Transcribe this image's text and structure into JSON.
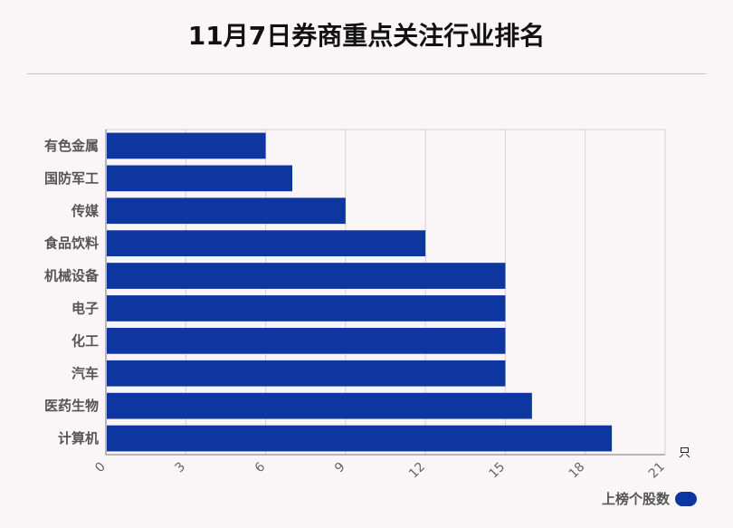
{
  "title": "11月7日券商重点关注行业排名",
  "chart_data": {
    "type": "bar",
    "orientation": "horizontal",
    "categories": [
      "有色金属",
      "国防军工",
      "传媒",
      "食品饮料",
      "机械设备",
      "电子",
      "化工",
      "汽车",
      "医药生物",
      "计算机"
    ],
    "series": [
      {
        "name": "上榜个股数",
        "values": [
          6,
          7,
          9,
          12,
          15,
          15,
          15,
          15,
          16,
          19
        ]
      }
    ],
    "xlim": [
      0,
      21
    ],
    "xticks": [
      0,
      3,
      6,
      9,
      12,
      15,
      18,
      21
    ],
    "xunit": "只",
    "grid": true,
    "legend_position": "bottom-right",
    "bar_color": "#0d36a1"
  },
  "legend": {
    "label": "上榜个股数"
  }
}
